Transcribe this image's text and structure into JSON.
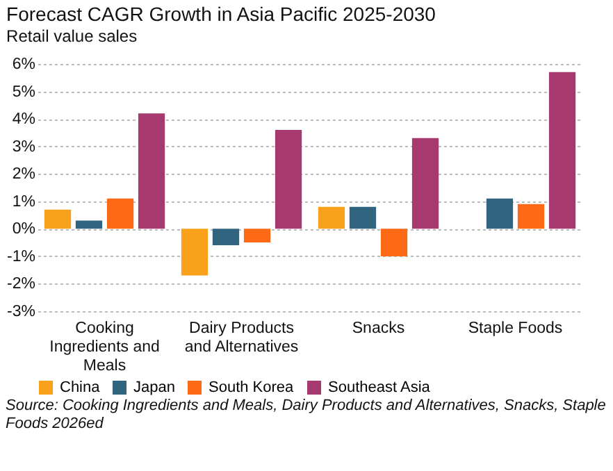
{
  "chart_data": {
    "type": "bar",
    "title": "Forecast CAGR Growth in Asia Pacific 2025-2030",
    "subtitle": "Retail value sales",
    "categories": [
      "Cooking Ingredients and Meals",
      "Dairy Products and Alternatives",
      "Snacks",
      "Staple Foods"
    ],
    "series": [
      {
        "name": "China",
        "color": "#f9a11b",
        "values": [
          0.7,
          -1.7,
          0.8,
          null
        ]
      },
      {
        "name": "Japan",
        "color": "#31647e",
        "values": [
          0.3,
          -0.6,
          0.8,
          1.1
        ]
      },
      {
        "name": "South Korea",
        "color": "#fd6a16",
        "values": [
          1.1,
          -0.5,
          -1.0,
          0.9
        ]
      },
      {
        "name": "Southeast Asia",
        "color": "#a63a6e",
        "values": [
          4.2,
          3.6,
          3.3,
          5.7
        ]
      }
    ],
    "ylim": [
      -3,
      6
    ],
    "yticks": [
      {
        "value": -3,
        "label": "-3%"
      },
      {
        "value": -2,
        "label": "-2%"
      },
      {
        "value": -1,
        "label": "-1%"
      },
      {
        "value": 0,
        "label": "0%"
      },
      {
        "value": 1,
        "label": "1%"
      },
      {
        "value": 2,
        "label": "2%"
      },
      {
        "value": 3,
        "label": "3%"
      },
      {
        "value": 4,
        "label": "4%"
      },
      {
        "value": 5,
        "label": "5%"
      },
      {
        "value": 6,
        "label": "6%"
      }
    ],
    "grid": "y",
    "legend": "bottom",
    "annotations": [
      "Source: Cooking Ingredients and Meals, Dairy Products and Alternatives, Snacks, Staple Foods 2026ed"
    ]
  }
}
